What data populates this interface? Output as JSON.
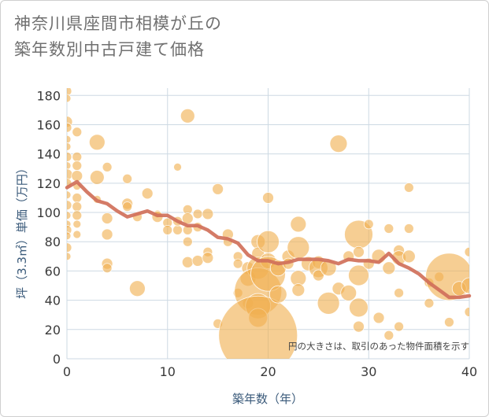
{
  "title": {
    "line1": "神奈川県座間市相模が丘の",
    "line2": "築年数別中古戸建て価格"
  },
  "chart_data": {
    "type": "scatter",
    "xlabel": "築年数（年）",
    "ylabel": "坪（3.3㎡）単価（万円）",
    "note": "円の大きさは、取引のあった物件面積を示す",
    "xlim": [
      0,
      40
    ],
    "ylim": [
      0,
      185
    ],
    "xticks": [
      0,
      10,
      20,
      30,
      40
    ],
    "yticks": [
      0,
      20,
      40,
      60,
      80,
      100,
      120,
      140,
      160,
      180
    ],
    "grid": true,
    "colors": {
      "bubble": "#f0b050",
      "line": "#d0705a",
      "grid": "#cdd9e3",
      "text": "#555555",
      "axis_text": "#3a5a7a"
    },
    "bubbles": [
      {
        "x": 0,
        "y": 183,
        "s": 6
      },
      {
        "x": 0,
        "y": 178,
        "s": 5
      },
      {
        "x": 0,
        "y": 162,
        "s": 7
      },
      {
        "x": 0,
        "y": 158,
        "s": 6
      },
      {
        "x": 0,
        "y": 150,
        "s": 5
      },
      {
        "x": 0,
        "y": 145,
        "s": 5
      },
      {
        "x": 0,
        "y": 138,
        "s": 6
      },
      {
        "x": 0,
        "y": 132,
        "s": 5
      },
      {
        "x": 0,
        "y": 126,
        "s": 7
      },
      {
        "x": 0,
        "y": 120,
        "s": 6
      },
      {
        "x": 0,
        "y": 112,
        "s": 5
      },
      {
        "x": 0,
        "y": 105,
        "s": 6
      },
      {
        "x": 0,
        "y": 98,
        "s": 5
      },
      {
        "x": 0,
        "y": 92,
        "s": 5
      },
      {
        "x": 0,
        "y": 88,
        "s": 6
      },
      {
        "x": 0,
        "y": 84,
        "s": 5
      },
      {
        "x": 0,
        "y": 76,
        "s": 6
      },
      {
        "x": 0,
        "y": 70,
        "s": 5
      },
      {
        "x": 1,
        "y": 155,
        "s": 6
      },
      {
        "x": 1,
        "y": 138,
        "s": 6
      },
      {
        "x": 1,
        "y": 132,
        "s": 6
      },
      {
        "x": 1,
        "y": 125,
        "s": 7
      },
      {
        "x": 1,
        "y": 118,
        "s": 5
      },
      {
        "x": 1,
        "y": 110,
        "s": 6
      },
      {
        "x": 1,
        "y": 104,
        "s": 6
      },
      {
        "x": 1,
        "y": 98,
        "s": 6
      },
      {
        "x": 1,
        "y": 92,
        "s": 5
      },
      {
        "x": 1,
        "y": 85,
        "s": 5
      },
      {
        "x": 3,
        "y": 148,
        "s": 10
      },
      {
        "x": 3,
        "y": 124,
        "s": 9
      },
      {
        "x": 3,
        "y": 109,
        "s": 5
      },
      {
        "x": 4,
        "y": 131,
        "s": 6
      },
      {
        "x": 4,
        "y": 96,
        "s": 7
      },
      {
        "x": 4,
        "y": 85,
        "s": 7
      },
      {
        "x": 4,
        "y": 65,
        "s": 7
      },
      {
        "x": 4,
        "y": 62,
        "s": 6
      },
      {
        "x": 6,
        "y": 123,
        "s": 6
      },
      {
        "x": 6,
        "y": 106,
        "s": 7
      },
      {
        "x": 6,
        "y": 104,
        "s": 6
      },
      {
        "x": 7,
        "y": 97,
        "s": 6
      },
      {
        "x": 7,
        "y": 48,
        "s": 10
      },
      {
        "x": 8,
        "y": 113,
        "s": 7
      },
      {
        "x": 9,
        "y": 99,
        "s": 5
      },
      {
        "x": 9,
        "y": 97,
        "s": 7
      },
      {
        "x": 10,
        "y": 93,
        "s": 6
      },
      {
        "x": 10,
        "y": 88,
        "s": 6
      },
      {
        "x": 11,
        "y": 131,
        "s": 5
      },
      {
        "x": 11,
        "y": 88,
        "s": 6
      },
      {
        "x": 11,
        "y": 94,
        "s": 6
      },
      {
        "x": 12,
        "y": 166,
        "s": 9
      },
      {
        "x": 12,
        "y": 102,
        "s": 6
      },
      {
        "x": 12,
        "y": 96,
        "s": 7
      },
      {
        "x": 12,
        "y": 88,
        "s": 6
      },
      {
        "x": 12,
        "y": 80,
        "s": 6
      },
      {
        "x": 12,
        "y": 66,
        "s": 7
      },
      {
        "x": 13,
        "y": 99,
        "s": 6
      },
      {
        "x": 13,
        "y": 90,
        "s": 6
      },
      {
        "x": 13,
        "y": 67,
        "s": 7
      },
      {
        "x": 14,
        "y": 99,
        "s": 7
      },
      {
        "x": 14,
        "y": 73,
        "s": 6
      },
      {
        "x": 14,
        "y": 69,
        "s": 7
      },
      {
        "x": 15,
        "y": 116,
        "s": 7
      },
      {
        "x": 15,
        "y": 24,
        "s": 6
      },
      {
        "x": 16,
        "y": 85,
        "s": 7
      },
      {
        "x": 16,
        "y": 80,
        "s": 6
      },
      {
        "x": 17,
        "y": 70,
        "s": 6
      },
      {
        "x": 17,
        "y": 65,
        "s": 6
      },
      {
        "x": 17,
        "y": 45,
        "s": 6
      },
      {
        "x": 18,
        "y": 62,
        "s": 8
      },
      {
        "x": 18,
        "y": 55,
        "s": 10
      },
      {
        "x": 18,
        "y": 38,
        "s": 7
      },
      {
        "x": 19,
        "y": 80,
        "s": 9
      },
      {
        "x": 19,
        "y": 72,
        "s": 8
      },
      {
        "x": 19,
        "y": 62,
        "s": 14
      },
      {
        "x": 19,
        "y": 46,
        "s": 30
      },
      {
        "x": 19,
        "y": 36,
        "s": 16
      },
      {
        "x": 19,
        "y": 28,
        "s": 12
      },
      {
        "x": 19,
        "y": 16,
        "s": 50
      },
      {
        "x": 20,
        "y": 110,
        "s": 7
      },
      {
        "x": 20,
        "y": 80,
        "s": 14
      },
      {
        "x": 20,
        "y": 67,
        "s": 10
      },
      {
        "x": 20,
        "y": 58,
        "s": 22
      },
      {
        "x": 21,
        "y": 44,
        "s": 11
      },
      {
        "x": 21,
        "y": 62,
        "s": 10
      },
      {
        "x": 22,
        "y": 70,
        "s": 8
      },
      {
        "x": 22,
        "y": 65,
        "s": 7
      },
      {
        "x": 23,
        "y": 92,
        "s": 10
      },
      {
        "x": 23,
        "y": 76,
        "s": 14
      },
      {
        "x": 23,
        "y": 55,
        "s": 10
      },
      {
        "x": 23,
        "y": 47,
        "s": 8
      },
      {
        "x": 24,
        "y": 65,
        "s": 9
      },
      {
        "x": 25,
        "y": 66,
        "s": 8
      },
      {
        "x": 25,
        "y": 62,
        "s": 12
      },
      {
        "x": 25,
        "y": 57,
        "s": 7
      },
      {
        "x": 26,
        "y": 62,
        "s": 10
      },
      {
        "x": 26,
        "y": 38,
        "s": 14
      },
      {
        "x": 27,
        "y": 147,
        "s": 11
      },
      {
        "x": 27,
        "y": 48,
        "s": 8
      },
      {
        "x": 28,
        "y": 70,
        "s": 7
      },
      {
        "x": 28,
        "y": 45,
        "s": 10
      },
      {
        "x": 29,
        "y": 85,
        "s": 18
      },
      {
        "x": 29,
        "y": 73,
        "s": 7
      },
      {
        "x": 29,
        "y": 57,
        "s": 13
      },
      {
        "x": 29,
        "y": 35,
        "s": 12
      },
      {
        "x": 29,
        "y": 22,
        "s": 7
      },
      {
        "x": 30,
        "y": 92,
        "s": 6
      },
      {
        "x": 30,
        "y": 65,
        "s": 7
      },
      {
        "x": 31,
        "y": 70,
        "s": 9
      },
      {
        "x": 31,
        "y": 28,
        "s": 7
      },
      {
        "x": 32,
        "y": 89,
        "s": 6
      },
      {
        "x": 32,
        "y": 62,
        "s": 8
      },
      {
        "x": 32,
        "y": 16,
        "s": 6
      },
      {
        "x": 33,
        "y": 74,
        "s": 7
      },
      {
        "x": 33,
        "y": 69,
        "s": 9
      },
      {
        "x": 33,
        "y": 45,
        "s": 6
      },
      {
        "x": 33,
        "y": 22,
        "s": 6
      },
      {
        "x": 34,
        "y": 117,
        "s": 6
      },
      {
        "x": 34,
        "y": 89,
        "s": 6
      },
      {
        "x": 34,
        "y": 70,
        "s": 8
      },
      {
        "x": 36,
        "y": 52,
        "s": 6
      },
      {
        "x": 36,
        "y": 38,
        "s": 6
      },
      {
        "x": 37,
        "y": 56,
        "s": 6
      },
      {
        "x": 38,
        "y": 56,
        "s": 30
      },
      {
        "x": 38,
        "y": 25,
        "s": 6
      },
      {
        "x": 39,
        "y": 48,
        "s": 9
      },
      {
        "x": 40,
        "y": 73,
        "s": 6
      },
      {
        "x": 40,
        "y": 50,
        "s": 10
      },
      {
        "x": 40,
        "y": 32,
        "s": 6
      }
    ],
    "trend": {
      "x": [
        0,
        1,
        2,
        3,
        4,
        5,
        6,
        7,
        8,
        9,
        10,
        11,
        12,
        13,
        14,
        15,
        16,
        17,
        18,
        19,
        20,
        21,
        22,
        23,
        24,
        25,
        26,
        27,
        28,
        29,
        30,
        31,
        32,
        33,
        34,
        35,
        36,
        37,
        38,
        39,
        40
      ],
      "y": [
        117,
        121,
        114,
        108,
        106,
        101,
        97,
        99,
        101,
        98,
        98,
        94,
        91,
        91,
        88,
        83,
        82,
        79,
        71,
        67,
        67,
        65,
        66,
        68,
        68,
        68,
        67,
        65,
        68,
        67,
        67,
        66,
        72,
        65,
        62,
        58,
        52,
        47,
        42,
        42,
        43
      ]
    }
  }
}
